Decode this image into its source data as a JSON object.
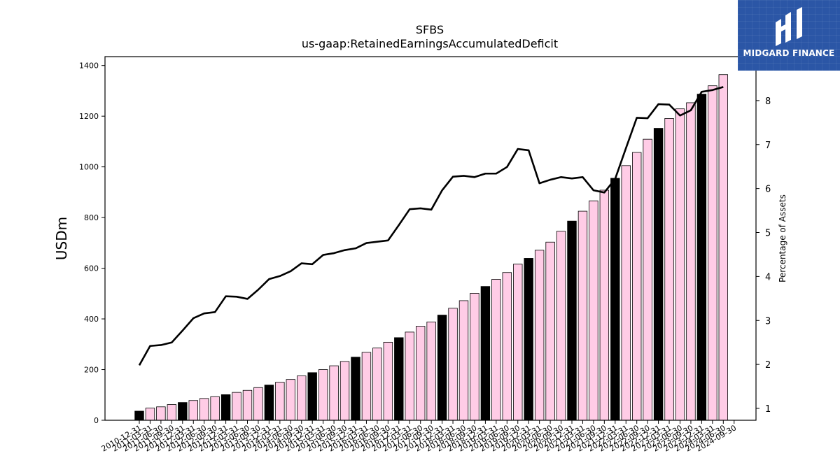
{
  "brand": {
    "name": "MIDGARD FINANCE",
    "background_color": "#2b56a6",
    "icon": "midgard-logo-icon"
  },
  "chart_data": {
    "type": "bar",
    "title": "SFBS",
    "subtitle": "us-gaap:RetainedEarningsAccumulatedDeficit",
    "ylabel": "USDm",
    "y2label": "Percentage of Assets",
    "ylim": [
      0,
      1435
    ],
    "y2lim": [
      0.73,
      9.0
    ],
    "yticks": [
      0,
      200,
      400,
      600,
      800,
      1000,
      1200,
      1400
    ],
    "y2ticks": [
      1,
      2,
      3,
      4,
      5,
      6,
      7,
      8
    ],
    "grid": false,
    "colors": {
      "bar_year_end": "#000000",
      "bar_quarter": "#ffcce6",
      "bar_edge": "#000000",
      "line": "#000000"
    },
    "categories": [
      "2010-12-31",
      "2011-03-31",
      "2011-06-30",
      "2011-09-30",
      "2011-12-31",
      "2012-03-31",
      "2012-06-30",
      "2012-09-30",
      "2012-12-31",
      "2013-03-31",
      "2013-06-30",
      "2013-09-30",
      "2013-12-31",
      "2014-03-31",
      "2014-06-30",
      "2014-09-30",
      "2014-12-31",
      "2015-03-31",
      "2015-06-30",
      "2015-09-30",
      "2015-12-31",
      "2016-03-31",
      "2016-06-30",
      "2016-09-30",
      "2016-12-31",
      "2017-03-31",
      "2017-06-30",
      "2017-09-30",
      "2017-12-31",
      "2018-03-31",
      "2018-06-30",
      "2018-09-30",
      "2018-12-31",
      "2019-03-31",
      "2019-06-30",
      "2019-09-30",
      "2019-12-31",
      "2020-03-31",
      "2020-06-30",
      "2020-09-30",
      "2020-12-31",
      "2021-03-31",
      "2021-06-30",
      "2021-09-30",
      "2021-12-31",
      "2022-03-31",
      "2022-06-30",
      "2022-09-30",
      "2022-12-31",
      "2023-03-31",
      "2023-06-30",
      "2023-09-30",
      "2023-12-31",
      "2024-03-31",
      "2024-06-30",
      "2024-09-30"
    ],
    "series": [
      {
        "kind": "bar",
        "axis": "left",
        "values": [
          36,
          48,
          53,
          62,
          70,
          78,
          86,
          93,
          101,
          110,
          118,
          129,
          139,
          150,
          161,
          175,
          188,
          200,
          215,
          232,
          249,
          268,
          285,
          308,
          326,
          348,
          371,
          388,
          415,
          442,
          472,
          501,
          528,
          556,
          583,
          616,
          639,
          671,
          703,
          746,
          786,
          825,
          866,
          908,
          955,
          1005,
          1057,
          1109,
          1152,
          1191,
          1229,
          1253,
          1287,
          1320,
          1364,
          null
        ]
      },
      {
        "kind": "line",
        "axis": "right",
        "name": "Percentage of Assets",
        "values": [
          1.98,
          2.42,
          2.44,
          2.5,
          2.77,
          3.05,
          3.16,
          3.19,
          3.55,
          3.54,
          3.49,
          3.7,
          3.94,
          4.01,
          4.12,
          4.3,
          4.28,
          4.49,
          4.53,
          4.6,
          4.64,
          4.76,
          4.79,
          4.82,
          5.17,
          5.53,
          5.55,
          5.52,
          5.96,
          6.27,
          6.29,
          6.26,
          6.34,
          6.34,
          6.49,
          6.9,
          6.87,
          6.12,
          6.2,
          6.26,
          6.23,
          6.26,
          5.96,
          5.91,
          6.22,
          6.92,
          7.61,
          7.6,
          7.92,
          7.91,
          7.66,
          7.78,
          8.2,
          8.24,
          8.31,
          null
        ]
      }
    ]
  }
}
